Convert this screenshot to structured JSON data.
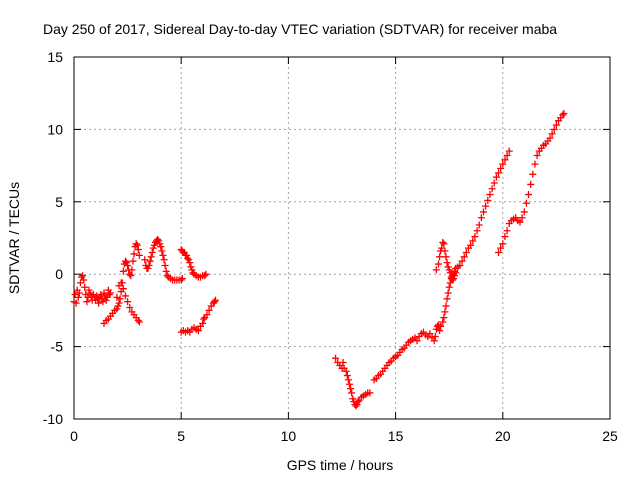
{
  "chart_data": {
    "type": "scatter",
    "title": "Day 250 of 2017, Sidereal Day-to-day VTEC variation (SDTVAR) for receiver maba",
    "xlabel": "GPS time / hours",
    "ylabel": "SDTVAR / TECUs",
    "xlim": [
      0,
      25
    ],
    "ylim": [
      -10,
      15
    ],
    "x_ticks": [
      "0",
      "5",
      "10",
      "15",
      "20",
      "25"
    ],
    "y_ticks": [
      "-10",
      "-5",
      "0",
      "5",
      "10",
      "15"
    ],
    "grid": true,
    "marker": "plus",
    "color": "#ff0000",
    "series": [
      {
        "points": [
          [
            0.0,
            -1.9
          ],
          [
            0.05,
            -1.4
          ],
          [
            0.1,
            -2.0
          ],
          [
            0.15,
            -1.1
          ],
          [
            0.2,
            -1.6
          ],
          [
            0.25,
            -1.3
          ],
          [
            0.3,
            -0.6
          ],
          [
            0.35,
            -0.2
          ],
          [
            0.4,
            -0.1
          ],
          [
            0.45,
            -0.4
          ],
          [
            0.5,
            -0.9
          ],
          [
            0.55,
            -1.4
          ],
          [
            0.6,
            -1.9
          ],
          [
            0.65,
            -1.6
          ],
          [
            0.7,
            -1.1
          ],
          [
            0.75,
            -1.3
          ],
          [
            0.8,
            -1.5
          ],
          [
            0.85,
            -1.8
          ],
          [
            0.9,
            -1.4
          ],
          [
            0.95,
            -1.6
          ],
          [
            1.0,
            -1.8
          ],
          [
            1.05,
            -1.5
          ],
          [
            1.1,
            -1.7
          ],
          [
            1.15,
            -2.0
          ],
          [
            1.2,
            -1.6
          ],
          [
            1.25,
            -1.4
          ],
          [
            1.3,
            -1.7
          ],
          [
            1.35,
            -1.9
          ],
          [
            1.4,
            -1.3
          ],
          [
            1.45,
            -1.5
          ],
          [
            1.5,
            -1.8
          ],
          [
            1.55,
            -1.6
          ],
          [
            1.6,
            -1.1
          ],
          [
            1.65,
            -1.4
          ],
          [
            1.7,
            -1.3
          ]
        ]
      },
      {
        "points": [
          [
            1.4,
            -3.4
          ],
          [
            1.5,
            -3.2
          ],
          [
            1.6,
            -3.1
          ],
          [
            1.7,
            -2.9
          ],
          [
            1.8,
            -2.7
          ],
          [
            1.9,
            -2.5
          ],
          [
            2.0,
            -2.4
          ],
          [
            2.05,
            -2.2
          ],
          [
            2.1,
            -2.0
          ],
          [
            2.15,
            -1.7
          ],
          [
            2.2,
            -1.2
          ],
          [
            2.25,
            -0.6
          ],
          [
            2.3,
            0.2
          ],
          [
            2.35,
            0.7
          ],
          [
            2.4,
            0.9
          ],
          [
            2.45,
            0.8
          ],
          [
            2.5,
            0.6
          ],
          [
            2.55,
            0.3
          ],
          [
            2.6,
            0.0
          ],
          [
            2.65,
            -0.1
          ],
          [
            2.7,
            0.3
          ],
          [
            2.75,
            0.9
          ],
          [
            2.8,
            1.4
          ],
          [
            2.85,
            1.9
          ],
          [
            2.9,
            2.1
          ],
          [
            2.95,
            2.0
          ],
          [
            3.0,
            1.7
          ],
          [
            3.05,
            1.3
          ]
        ]
      },
      {
        "points": [
          [
            2.0,
            -1.6
          ],
          [
            2.1,
            -0.8
          ],
          [
            2.2,
            -0.6
          ],
          [
            2.3,
            -1.0
          ],
          [
            2.4,
            -1.5
          ],
          [
            2.5,
            -1.9
          ],
          [
            2.6,
            -2.3
          ],
          [
            2.7,
            -2.6
          ],
          [
            2.8,
            -2.8
          ],
          [
            2.9,
            -3.0
          ],
          [
            3.0,
            -3.2
          ],
          [
            3.05,
            -3.3
          ]
        ]
      },
      {
        "points": [
          [
            3.3,
            1.0
          ],
          [
            3.35,
            0.6
          ],
          [
            3.4,
            0.4
          ],
          [
            3.45,
            0.4
          ],
          [
            3.5,
            0.6
          ],
          [
            3.55,
            0.9
          ],
          [
            3.6,
            1.2
          ],
          [
            3.65,
            1.5
          ],
          [
            3.7,
            1.8
          ],
          [
            3.75,
            2.0
          ],
          [
            3.8,
            2.2
          ],
          [
            3.85,
            2.3
          ],
          [
            3.9,
            2.4
          ],
          [
            3.95,
            2.3
          ],
          [
            4.0,
            2.1
          ],
          [
            4.05,
            1.9
          ],
          [
            4.1,
            1.6
          ],
          [
            4.15,
            1.3
          ],
          [
            4.2,
            1.0
          ],
          [
            4.25,
            0.6
          ],
          [
            4.3,
            0.2
          ],
          [
            4.35,
            -0.1
          ],
          [
            4.4,
            -0.2
          ],
          [
            4.5,
            -0.3
          ],
          [
            4.6,
            -0.4
          ],
          [
            4.7,
            -0.4
          ],
          [
            4.8,
            -0.4
          ],
          [
            4.9,
            -0.4
          ],
          [
            5.0,
            -0.4
          ],
          [
            5.05,
            -0.3
          ]
        ]
      },
      {
        "points": [
          [
            5.0,
            1.7
          ],
          [
            5.05,
            1.6
          ],
          [
            5.1,
            1.5
          ],
          [
            5.15,
            1.5
          ],
          [
            5.2,
            1.3
          ],
          [
            5.25,
            1.3
          ],
          [
            5.3,
            1.1
          ],
          [
            5.35,
            1.0
          ],
          [
            5.4,
            0.8
          ],
          [
            5.45,
            0.5
          ],
          [
            5.5,
            0.3
          ],
          [
            5.55,
            0.1
          ],
          [
            5.6,
            0.0
          ],
          [
            5.7,
            -0.1
          ],
          [
            5.8,
            -0.2
          ],
          [
            5.9,
            -0.2
          ],
          [
            6.0,
            -0.1
          ],
          [
            6.1,
            -0.1
          ],
          [
            6.15,
            0.0
          ]
        ]
      },
      {
        "points": [
          [
            5.0,
            -4.0
          ],
          [
            5.1,
            -3.9
          ],
          [
            5.2,
            -4.0
          ],
          [
            5.3,
            -3.9
          ],
          [
            5.4,
            -4.0
          ],
          [
            5.5,
            -3.8
          ],
          [
            5.6,
            -3.7
          ],
          [
            5.7,
            -3.8
          ],
          [
            5.8,
            -3.9
          ],
          [
            5.9,
            -3.6
          ],
          [
            6.0,
            -3.4
          ],
          [
            6.05,
            -3.1
          ],
          [
            6.1,
            -3.0
          ],
          [
            6.2,
            -2.8
          ],
          [
            6.3,
            -2.5
          ],
          [
            6.4,
            -2.2
          ],
          [
            6.5,
            -2.0
          ],
          [
            6.55,
            -1.9
          ],
          [
            6.6,
            -1.8
          ]
        ]
      },
      {
        "points": [
          [
            12.2,
            -5.8
          ],
          [
            12.3,
            -6.1
          ],
          [
            12.4,
            -6.3
          ],
          [
            12.5,
            -6.5
          ],
          [
            12.55,
            -6.1
          ],
          [
            12.6,
            -6.5
          ],
          [
            12.7,
            -6.7
          ],
          [
            12.75,
            -7.0
          ],
          [
            12.8,
            -7.3
          ],
          [
            12.85,
            -7.6
          ],
          [
            12.9,
            -7.9
          ],
          [
            12.95,
            -8.2
          ],
          [
            13.0,
            -8.6
          ],
          [
            13.05,
            -8.8
          ],
          [
            13.1,
            -9.0
          ],
          [
            13.15,
            -9.1
          ],
          [
            13.2,
            -9.0
          ],
          [
            13.25,
            -8.8
          ],
          [
            13.3,
            -8.7
          ],
          [
            13.4,
            -8.5
          ],
          [
            13.5,
            -8.4
          ],
          [
            13.6,
            -8.3
          ],
          [
            13.7,
            -8.2
          ],
          [
            13.8,
            -8.2
          ]
        ]
      },
      {
        "points": [
          [
            14.0,
            -7.3
          ],
          [
            14.1,
            -7.2
          ],
          [
            14.2,
            -7.0
          ],
          [
            14.3,
            -6.9
          ],
          [
            14.4,
            -6.7
          ],
          [
            14.5,
            -6.5
          ],
          [
            14.6,
            -6.3
          ],
          [
            14.7,
            -6.1
          ],
          [
            14.8,
            -6.0
          ],
          [
            14.9,
            -5.8
          ],
          [
            15.0,
            -5.7
          ],
          [
            15.1,
            -5.6
          ],
          [
            15.2,
            -5.4
          ],
          [
            15.3,
            -5.2
          ],
          [
            15.4,
            -5.1
          ],
          [
            15.5,
            -4.9
          ],
          [
            15.6,
            -4.7
          ],
          [
            15.7,
            -4.6
          ],
          [
            15.8,
            -4.5
          ],
          [
            15.9,
            -4.4
          ],
          [
            16.0,
            -4.6
          ],
          [
            16.1,
            -4.3
          ],
          [
            16.2,
            -4.1
          ],
          [
            16.3,
            -4.0
          ],
          [
            16.4,
            -4.2
          ],
          [
            16.5,
            -4.3
          ],
          [
            16.6,
            -4.1
          ],
          [
            16.7,
            -4.4
          ],
          [
            16.8,
            -4.6
          ],
          [
            16.85,
            -4.3
          ],
          [
            16.9,
            -3.8
          ],
          [
            16.95,
            -3.6
          ],
          [
            17.0,
            -3.5
          ],
          [
            17.05,
            -3.9
          ],
          [
            17.1,
            -3.6
          ],
          [
            17.2,
            -3.3
          ],
          [
            17.25,
            -3.0
          ],
          [
            17.3,
            -2.6
          ],
          [
            17.35,
            -2.2
          ],
          [
            17.4,
            -1.7
          ],
          [
            17.45,
            -1.3
          ],
          [
            17.5,
            -0.9
          ],
          [
            17.55,
            -0.6
          ],
          [
            17.6,
            -0.3
          ],
          [
            17.65,
            -0.1
          ],
          [
            17.7,
            0.0
          ],
          [
            17.75,
            0.2
          ],
          [
            17.8,
            0.4
          ],
          [
            17.9,
            0.5
          ],
          [
            18.0,
            0.6
          ],
          [
            18.1,
            0.9
          ],
          [
            18.2,
            1.2
          ],
          [
            18.3,
            1.5
          ],
          [
            18.4,
            1.8
          ],
          [
            18.5,
            2.0
          ],
          [
            18.6,
            2.3
          ],
          [
            18.7,
            2.6
          ],
          [
            18.8,
            3.0
          ],
          [
            18.9,
            3.4
          ],
          [
            19.0,
            3.9
          ],
          [
            19.1,
            4.3
          ],
          [
            19.2,
            4.7
          ],
          [
            19.3,
            5.1
          ],
          [
            19.4,
            5.5
          ],
          [
            19.5,
            5.9
          ],
          [
            19.6,
            6.3
          ],
          [
            19.7,
            6.7
          ],
          [
            19.8,
            7.0
          ],
          [
            19.9,
            7.3
          ],
          [
            20.0,
            7.6
          ],
          [
            20.1,
            7.9
          ],
          [
            20.2,
            8.2
          ],
          [
            20.3,
            8.5
          ]
        ]
      },
      {
        "points": [
          [
            16.9,
            0.3
          ],
          [
            17.0,
            0.7
          ],
          [
            17.05,
            1.2
          ],
          [
            17.1,
            1.6
          ],
          [
            17.15,
            1.8
          ],
          [
            17.2,
            2.2
          ],
          [
            17.25,
            2.1
          ],
          [
            17.3,
            1.6
          ],
          [
            17.35,
            1.2
          ],
          [
            17.4,
            0.8
          ],
          [
            17.45,
            0.5
          ],
          [
            17.5,
            0.3
          ],
          [
            17.55,
            0.1
          ],
          [
            17.6,
            -0.2
          ],
          [
            17.65,
            -0.4
          ],
          [
            17.7,
            -0.3
          ],
          [
            17.75,
            -0.1
          ],
          [
            17.8,
            0.1
          ]
        ]
      },
      {
        "points": [
          [
            19.8,
            1.5
          ],
          [
            19.9,
            1.8
          ],
          [
            20.0,
            2.1
          ],
          [
            20.1,
            2.6
          ],
          [
            20.2,
            3.0
          ],
          [
            20.3,
            3.5
          ],
          [
            20.4,
            3.7
          ],
          [
            20.5,
            3.8
          ],
          [
            20.6,
            3.9
          ],
          [
            20.7,
            3.7
          ],
          [
            20.8,
            3.6
          ],
          [
            20.9,
            3.9
          ],
          [
            21.0,
            4.3
          ],
          [
            21.1,
            4.9
          ],
          [
            21.2,
            5.5
          ],
          [
            21.3,
            6.2
          ],
          [
            21.4,
            6.9
          ],
          [
            21.5,
            7.6
          ],
          [
            21.6,
            8.2
          ],
          [
            21.7,
            8.5
          ],
          [
            21.8,
            8.7
          ],
          [
            21.9,
            8.9
          ],
          [
            22.0,
            9.0
          ],
          [
            22.1,
            9.2
          ],
          [
            22.2,
            9.4
          ],
          [
            22.3,
            9.7
          ],
          [
            22.4,
            10.0
          ],
          [
            22.5,
            10.3
          ],
          [
            22.6,
            10.6
          ],
          [
            22.7,
            10.8
          ],
          [
            22.8,
            11.0
          ],
          [
            22.85,
            11.1
          ]
        ]
      }
    ]
  }
}
